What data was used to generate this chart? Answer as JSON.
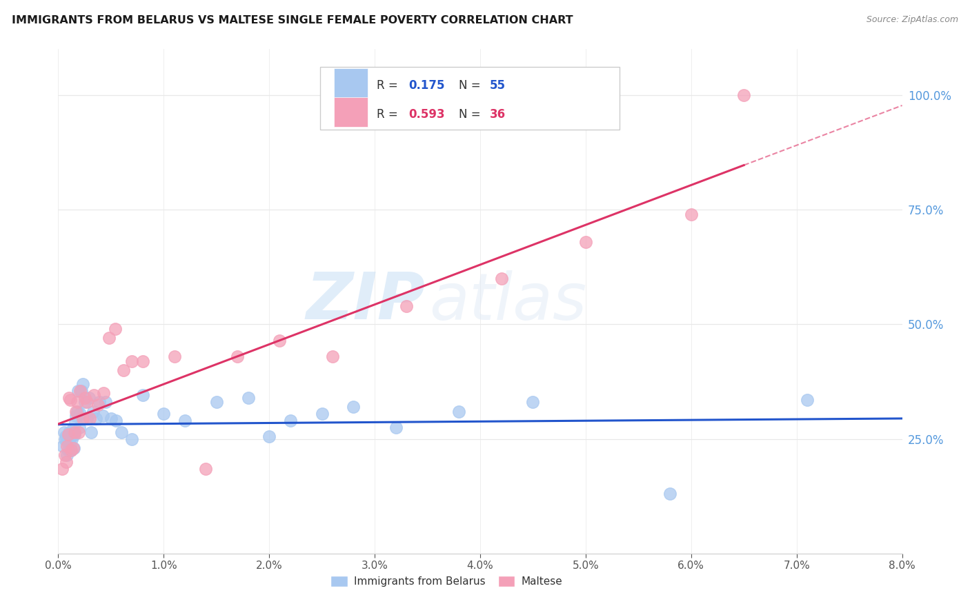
{
  "title": "IMMIGRANTS FROM BELARUS VS MALTESE SINGLE FEMALE POVERTY CORRELATION CHART",
  "source": "Source: ZipAtlas.com",
  "ylabel": "Single Female Poverty",
  "legend_labels": [
    "Immigrants from Belarus",
    "Maltese"
  ],
  "blue_R": "0.175",
  "blue_N": "55",
  "pink_R": "0.593",
  "pink_N": "36",
  "blue_color": "#a8c8f0",
  "pink_color": "#f4a0b8",
  "trend_blue": "#2255cc",
  "trend_pink": "#dd3366",
  "watermark_zip": "ZIP",
  "watermark_atlas": "atlas",
  "x_min": 0.0,
  "x_max": 0.08,
  "y_min": 0.0,
  "y_max": 1.1,
  "grid_color": "#e8e8e8",
  "background_color": "#ffffff",
  "blue_points_x": [
    0.00045,
    0.00055,
    0.00065,
    0.0007,
    0.0008,
    0.00085,
    0.0009,
    0.00095,
    0.001,
    0.00105,
    0.0011,
    0.00115,
    0.0012,
    0.00125,
    0.0013,
    0.00135,
    0.0014,
    0.00145,
    0.0015,
    0.00155,
    0.0016,
    0.0017,
    0.0018,
    0.0019,
    0.002,
    0.0021,
    0.0022,
    0.0023,
    0.0025,
    0.0027,
    0.0029,
    0.0031,
    0.0033,
    0.0036,
    0.0039,
    0.0042,
    0.0045,
    0.005,
    0.0055,
    0.006,
    0.007,
    0.008,
    0.01,
    0.012,
    0.015,
    0.018,
    0.02,
    0.022,
    0.025,
    0.028,
    0.032,
    0.038,
    0.045,
    0.058,
    0.071
  ],
  "blue_points_y": [
    0.235,
    0.265,
    0.25,
    0.255,
    0.215,
    0.245,
    0.255,
    0.225,
    0.265,
    0.25,
    0.24,
    0.235,
    0.225,
    0.255,
    0.25,
    0.27,
    0.26,
    0.23,
    0.265,
    0.26,
    0.285,
    0.3,
    0.31,
    0.355,
    0.275,
    0.305,
    0.355,
    0.37,
    0.33,
    0.295,
    0.34,
    0.265,
    0.31,
    0.295,
    0.33,
    0.3,
    0.33,
    0.295,
    0.29,
    0.265,
    0.25,
    0.345,
    0.305,
    0.29,
    0.33,
    0.34,
    0.255,
    0.29,
    0.305,
    0.32,
    0.275,
    0.31,
    0.33,
    0.13,
    0.335
  ],
  "pink_points_x": [
    0.0004,
    0.0006,
    0.00075,
    0.00085,
    0.00095,
    0.00105,
    0.00115,
    0.00125,
    0.0014,
    0.00155,
    0.00165,
    0.0018,
    0.00195,
    0.0021,
    0.0023,
    0.0025,
    0.0027,
    0.003,
    0.0034,
    0.0038,
    0.0043,
    0.0048,
    0.0054,
    0.0062,
    0.007,
    0.008,
    0.011,
    0.014,
    0.017,
    0.021,
    0.026,
    0.033,
    0.042,
    0.05,
    0.06,
    0.065
  ],
  "pink_points_y": [
    0.185,
    0.215,
    0.2,
    0.235,
    0.26,
    0.34,
    0.335,
    0.225,
    0.23,
    0.265,
    0.31,
    0.33,
    0.265,
    0.355,
    0.295,
    0.34,
    0.33,
    0.295,
    0.345,
    0.325,
    0.35,
    0.47,
    0.49,
    0.4,
    0.42,
    0.42,
    0.43,
    0.185,
    0.43,
    0.465,
    0.43,
    0.54,
    0.6,
    0.68,
    0.74,
    1.0
  ]
}
